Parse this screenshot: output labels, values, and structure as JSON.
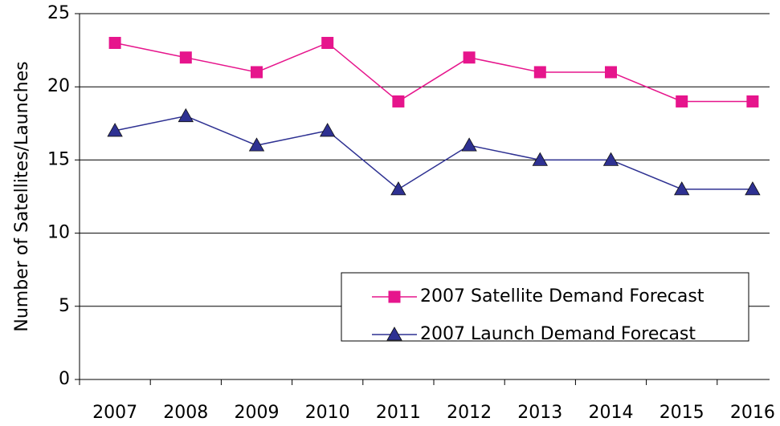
{
  "chart_data": {
    "type": "line",
    "ylabel": "Number of Satellites/Launches",
    "categories": [
      "2007",
      "2008",
      "2009",
      "2010",
      "2011",
      "2012",
      "2013",
      "2014",
      "2015",
      "2016"
    ],
    "series": [
      {
        "name": "2007 Satellite Demand Forecast",
        "color": "#e6158c",
        "marker": "square",
        "values": [
          23,
          22,
          21,
          23,
          19,
          22,
          21,
          21,
          19,
          19
        ]
      },
      {
        "name": "2007 Launch Demand Forecast",
        "color": "#2e3192",
        "marker": "triangle",
        "values": [
          17,
          18,
          16,
          17,
          13,
          16,
          15,
          15,
          13,
          13
        ]
      }
    ],
    "ylim": [
      0,
      25
    ],
    "yticks": [
      0,
      5,
      10,
      15,
      20,
      25
    ],
    "grid": true,
    "legend": "lower right"
  }
}
